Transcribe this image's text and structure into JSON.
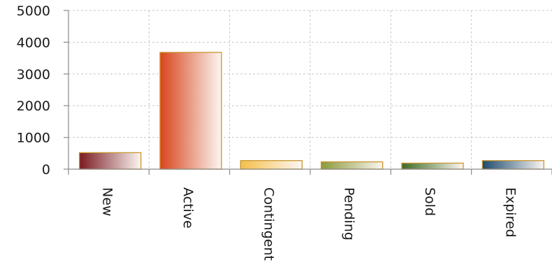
{
  "chart_data": {
    "type": "bar",
    "title": "",
    "xlabel": "",
    "ylabel": "",
    "ylim": [
      0,
      5000
    ],
    "yticks": [
      {
        "value": 0,
        "label": "0"
      },
      {
        "value": 1000,
        "label": "1000"
      },
      {
        "value": 2000,
        "label": "2000"
      },
      {
        "value": 3000,
        "label": "3000"
      },
      {
        "value": 4000,
        "label": "4000"
      },
      {
        "value": 5000,
        "label": "5000"
      }
    ],
    "grid": true,
    "categories": [
      "New",
      "Active",
      "Contingent",
      "Pending",
      "Sold",
      "Expired"
    ],
    "values": [
      520,
      3680,
      270,
      230,
      190,
      270
    ],
    "colors": [
      "#7a1a22",
      "#d9451c",
      "#f5c04a",
      "#8a9a3a",
      "#3e6a24",
      "#1e4a6e"
    ]
  }
}
